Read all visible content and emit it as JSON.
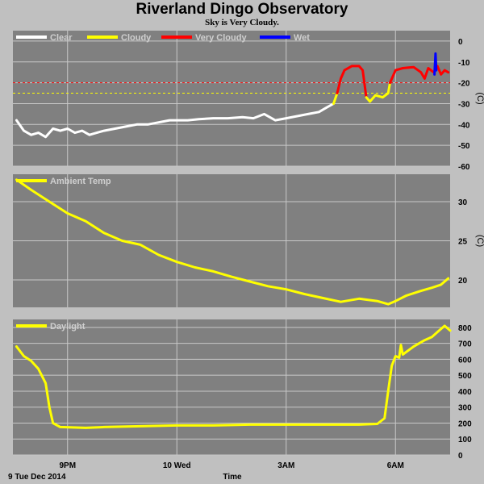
{
  "title": "Riverland Dingo Observatory",
  "subtitle": "Sky is Very Cloudy.",
  "footer": {
    "date_label": "9 Tue Dec 2014",
    "xaxis_label": "Time"
  },
  "colors": {
    "background": "#c0c0c0",
    "plot_bg": "#808080",
    "grid": "#c8c8c8",
    "clear": "#ffffff",
    "cloudy": "#ffff00",
    "very_cloudy": "#ff0000",
    "wet": "#0000ff",
    "threshold_red": "#ff0000",
    "threshold_yellow": "#ffff00"
  },
  "x_ticks": [
    {
      "label": "9PM",
      "hour": 21
    },
    {
      "label": "10 Wed",
      "hour": 24
    },
    {
      "label": "3AM",
      "hour": 27
    },
    {
      "label": "6AM",
      "hour": 30
    }
  ],
  "chart_data": [
    {
      "type": "line",
      "xlim": [
        19.5,
        31.5
      ],
      "ylim": [
        -60,
        5
      ],
      "yticks": [
        0,
        -10,
        -20,
        -30,
        -40,
        -50,
        -60
      ],
      "ylabel": "(C)",
      "legend": [
        "Clear",
        "Cloudy",
        "Very Cloudy",
        "Wet"
      ],
      "legend_placement": "top-left",
      "thresholds": [
        {
          "value": -20,
          "color": "red"
        },
        {
          "value": -25,
          "color": "yellow"
        }
      ],
      "series": [
        {
          "name": "Clear",
          "color": "#ffffff",
          "points": [
            [
              19.6,
              -38
            ],
            [
              19.8,
              -43
            ],
            [
              20.0,
              -45
            ],
            [
              20.2,
              -44
            ],
            [
              20.4,
              -46
            ],
            [
              20.6,
              -42
            ],
            [
              20.8,
              -43
            ],
            [
              21.0,
              -42
            ],
            [
              21.2,
              -44
            ],
            [
              21.4,
              -43
            ],
            [
              21.6,
              -45
            ],
            [
              21.8,
              -44
            ],
            [
              22.0,
              -43
            ],
            [
              22.3,
              -42
            ],
            [
              22.6,
              -41
            ],
            [
              22.9,
              -40
            ],
            [
              23.2,
              -40
            ],
            [
              23.5,
              -39
            ],
            [
              23.8,
              -38
            ],
            [
              24.0,
              -38
            ],
            [
              24.3,
              -38
            ],
            [
              24.6,
              -37.5
            ],
            [
              25.0,
              -37
            ],
            [
              25.4,
              -37
            ],
            [
              25.8,
              -36.5
            ],
            [
              26.1,
              -37
            ],
            [
              26.4,
              -35
            ],
            [
              26.7,
              -38
            ],
            [
              27.0,
              -37
            ],
            [
              27.3,
              -36
            ],
            [
              27.6,
              -35
            ],
            [
              27.9,
              -34
            ],
            [
              28.1,
              -32
            ],
            [
              28.3,
              -30
            ]
          ]
        },
        {
          "name": "Cloudy",
          "color": "#ffff00",
          "points": [
            [
              28.3,
              -30
            ],
            [
              28.4,
              -25
            ]
          ]
        },
        {
          "name": "Very Cloudy",
          "color": "#ff0000",
          "points": [
            [
              28.4,
              -25
            ],
            [
              28.5,
              -18
            ],
            [
              28.6,
              -14
            ],
            [
              28.8,
              -12
            ],
            [
              29.0,
              -12
            ],
            [
              29.1,
              -14
            ],
            [
              29.2,
              -27
            ]
          ]
        },
        {
          "name": "Cloudy",
          "color": "#ffff00",
          "points": [
            [
              29.2,
              -27
            ],
            [
              29.3,
              -29
            ],
            [
              29.45,
              -26
            ],
            [
              29.65,
              -27
            ],
            [
              29.8,
              -25
            ],
            [
              29.85,
              -20
            ]
          ]
        },
        {
          "name": "Very Cloudy",
          "color": "#ff0000",
          "points": [
            [
              29.85,
              -20
            ],
            [
              30.0,
              -14
            ],
            [
              30.2,
              -13
            ],
            [
              30.5,
              -12.5
            ],
            [
              30.7,
              -15
            ],
            [
              30.8,
              -18
            ],
            [
              30.9,
              -13
            ],
            [
              31.05,
              -15
            ],
            [
              31.15,
              -12
            ],
            [
              31.25,
              -16
            ],
            [
              31.35,
              -14
            ],
            [
              31.45,
              -15
            ]
          ]
        },
        {
          "name": "Wet",
          "color": "#0000ff",
          "points": [
            [
              31.07,
              -16
            ],
            [
              31.1,
              -6
            ],
            [
              31.12,
              -14
            ]
          ]
        }
      ]
    },
    {
      "type": "line",
      "xlim": [
        19.5,
        31.5
      ],
      "ylim": [
        16.5,
        33.5
      ],
      "yticks": [
        20,
        25,
        30
      ],
      "ylabel": "(C)",
      "legend": [
        "Ambient Temp"
      ],
      "legend_placement": "top-left",
      "series": [
        {
          "name": "Ambient Temp",
          "color": "#ffff00",
          "points": [
            [
              19.6,
              32.8
            ],
            [
              20.0,
              31.5
            ],
            [
              20.5,
              30.0
            ],
            [
              21.0,
              28.5
            ],
            [
              21.5,
              27.5
            ],
            [
              22.0,
              26.0
            ],
            [
              22.5,
              25.0
            ],
            [
              23.0,
              24.5
            ],
            [
              23.5,
              23.2
            ],
            [
              24.0,
              22.3
            ],
            [
              24.5,
              21.6
            ],
            [
              25.0,
              21.1
            ],
            [
              25.5,
              20.4
            ],
            [
              26.0,
              19.8
            ],
            [
              26.5,
              19.2
            ],
            [
              27.0,
              18.8
            ],
            [
              27.5,
              18.2
            ],
            [
              28.0,
              17.7
            ],
            [
              28.5,
              17.2
            ],
            [
              29.0,
              17.6
            ],
            [
              29.5,
              17.3
            ],
            [
              29.8,
              16.9
            ],
            [
              30.0,
              17.3
            ],
            [
              30.3,
              18.0
            ],
            [
              30.7,
              18.6
            ],
            [
              31.0,
              19.0
            ],
            [
              31.25,
              19.4
            ],
            [
              31.45,
              20.2
            ]
          ]
        }
      ]
    },
    {
      "type": "line",
      "xlim": [
        19.5,
        31.5
      ],
      "ylim": [
        0,
        850
      ],
      "yticks": [
        800,
        700,
        600,
        500,
        400,
        300,
        200,
        100,
        0
      ],
      "legend": [
        "Daylight"
      ],
      "legend_placement": "top-left",
      "series": [
        {
          "name": "Daylight",
          "color": "#ffff00",
          "points": [
            [
              19.6,
              680
            ],
            [
              19.8,
              620
            ],
            [
              20.0,
              590
            ],
            [
              20.2,
              540
            ],
            [
              20.4,
              450
            ],
            [
              20.5,
              300
            ],
            [
              20.6,
              200
            ],
            [
              20.8,
              175
            ],
            [
              21.5,
              170
            ],
            [
              22.0,
              175
            ],
            [
              23.0,
              180
            ],
            [
              24.0,
              185
            ],
            [
              25.0,
              185
            ],
            [
              26.0,
              190
            ],
            [
              27.0,
              190
            ],
            [
              28.0,
              190
            ],
            [
              29.0,
              190
            ],
            [
              29.5,
              195
            ],
            [
              29.7,
              230
            ],
            [
              29.8,
              400
            ],
            [
              29.9,
              560
            ],
            [
              30.0,
              620
            ],
            [
              30.1,
              610
            ],
            [
              30.15,
              690
            ],
            [
              30.2,
              630
            ],
            [
              30.5,
              680
            ],
            [
              30.8,
              720
            ],
            [
              31.0,
              740
            ],
            [
              31.2,
              780
            ],
            [
              31.35,
              810
            ],
            [
              31.5,
              780
            ]
          ]
        }
      ]
    }
  ]
}
